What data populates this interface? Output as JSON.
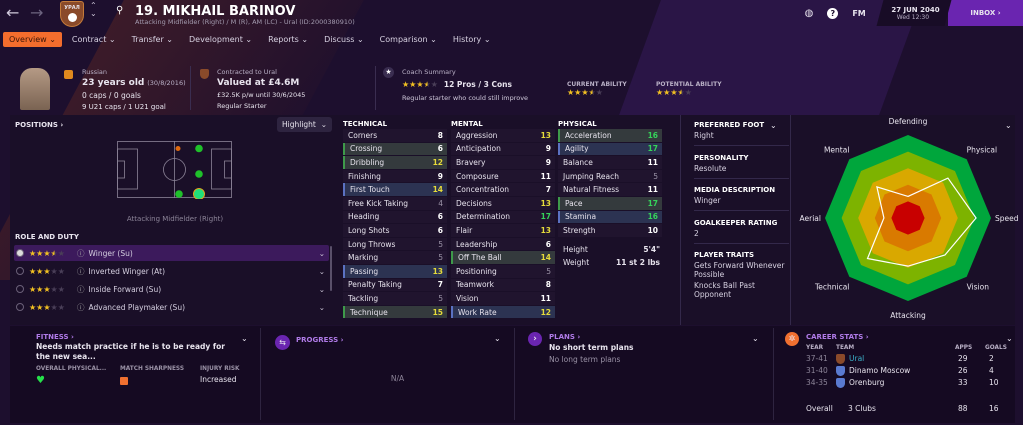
{
  "header": {
    "title": "19. MIKHAIL BARINOV",
    "subtitle": "Attacking Midfielder (Right) / M (R), AM (LC) - Ural (ID:2000380910)",
    "date": "27 JUN 2040",
    "time": "Wed 12:30",
    "fm": "FM",
    "inbox": "INBOX",
    "club_badge_text": "УРАЛ"
  },
  "tabs": [
    "Overview",
    "Contract",
    "Transfer",
    "Development",
    "Reports",
    "Discuss",
    "Comparison",
    "History"
  ],
  "profile": {
    "nationality": "Russian",
    "age": "23 years old",
    "dob": "(30/8/2016)",
    "caps": "0 caps / 0 goals",
    "u21": "9 U21 caps / 1 U21 goal"
  },
  "contract": {
    "label": "Contracted to Ural",
    "value": "Valued at £4.6M",
    "wage": "£32.5K p/w until 30/6/2045",
    "status": "Regular Starter"
  },
  "coach": {
    "label": "Coach Summary",
    "stars": 3.5,
    "pros_cons": "12 Pros / 3 Cons",
    "summary": "Regular starter who could still improve"
  },
  "ability": {
    "current_label": "CURRENT ABILITY",
    "current_stars": 3.5,
    "potential_label": "POTENTIAL ABILITY",
    "potential_stars": 3.5
  },
  "positions": {
    "title": "POSITIONS",
    "highlight": "Highlight",
    "caption": "Attacking Midfielder (Right)"
  },
  "roles": {
    "title": "ROLE AND DUTY",
    "items": [
      {
        "name": "Winger (Su)",
        "stars": 3.5,
        "selected": true
      },
      {
        "name": "Inverted Winger (At)",
        "stars": 3,
        "selected": false
      },
      {
        "name": "Inside Forward (Su)",
        "stars": 3,
        "selected": false
      },
      {
        "name": "Advanced Playmaker (Su)",
        "stars": 3,
        "selected": false
      }
    ]
  },
  "attributes": {
    "technical": {
      "title": "TECHNICAL",
      "items": [
        [
          "Corners",
          8,
          ""
        ],
        [
          "Crossing",
          6,
          "g"
        ],
        [
          "Dribbling",
          12,
          "g"
        ],
        [
          "Finishing",
          9,
          ""
        ],
        [
          "First Touch",
          14,
          "b"
        ],
        [
          "Free Kick Taking",
          4,
          ""
        ],
        [
          "Heading",
          6,
          ""
        ],
        [
          "Long Shots",
          6,
          ""
        ],
        [
          "Long Throws",
          5,
          ""
        ],
        [
          "Marking",
          5,
          ""
        ],
        [
          "Passing",
          13,
          "b"
        ],
        [
          "Penalty Taking",
          7,
          ""
        ],
        [
          "Tackling",
          5,
          ""
        ],
        [
          "Technique",
          15,
          "g"
        ]
      ]
    },
    "mental": {
      "title": "MENTAL",
      "items": [
        [
          "Aggression",
          13,
          ""
        ],
        [
          "Anticipation",
          9,
          ""
        ],
        [
          "Bravery",
          9,
          ""
        ],
        [
          "Composure",
          11,
          ""
        ],
        [
          "Concentration",
          7,
          ""
        ],
        [
          "Decisions",
          13,
          ""
        ],
        [
          "Determination",
          17,
          ""
        ],
        [
          "Flair",
          13,
          ""
        ],
        [
          "Leadership",
          6,
          ""
        ],
        [
          "Off The Ball",
          14,
          "g"
        ],
        [
          "Positioning",
          5,
          ""
        ],
        [
          "Teamwork",
          8,
          ""
        ],
        [
          "Vision",
          11,
          ""
        ],
        [
          "Work Rate",
          12,
          "b"
        ]
      ]
    },
    "physical": {
      "title": "PHYSICAL",
      "items": [
        [
          "Acceleration",
          16,
          "g"
        ],
        [
          "Agility",
          17,
          "b"
        ],
        [
          "Balance",
          11,
          ""
        ],
        [
          "Jumping Reach",
          5,
          ""
        ],
        [
          "Natural Fitness",
          11,
          ""
        ],
        [
          "Pace",
          17,
          "g"
        ],
        [
          "Stamina",
          16,
          "b"
        ],
        [
          "Strength",
          10,
          ""
        ]
      ]
    },
    "height_label": "Height",
    "height": "5'4\"",
    "weight_label": "Weight",
    "weight": "11 st 2 lbs"
  },
  "info": [
    {
      "h": "PREFERRED FOOT",
      "v": [
        "Right"
      ]
    },
    {
      "h": "PERSONALITY",
      "v": [
        "Resolute"
      ]
    },
    {
      "h": "MEDIA DESCRIPTION",
      "v": [
        "Winger"
      ]
    },
    {
      "h": "GOALKEEPER RATING",
      "v": [
        "2"
      ]
    },
    {
      "h": "PLAYER TRAITS",
      "v": [
        "Gets Forward Whenever Possible",
        "Knocks Ball Past Opponent"
      ]
    }
  ],
  "radar": {
    "labels": [
      "Defending",
      "Physical",
      "Speed",
      "Vision",
      "Attacking",
      "Technical",
      "Aerial",
      "Mental"
    ],
    "values": [
      0.26,
      0.68,
      0.82,
      0.63,
      0.58,
      0.69,
      0.29,
      0.53
    ],
    "band_colors": [
      "#00a63c",
      "#7db300",
      "#d9a800",
      "#d97a00",
      "#c80000"
    ]
  },
  "fitness": {
    "title": "FITNESS",
    "text": "Needs match practice if he is to be ready for the new sea...",
    "cols": [
      "OVERALL PHYSICAL...",
      "MATCH SHARPNESS",
      "INJURY RISK"
    ],
    "injury": "Increased"
  },
  "progress": {
    "title": "PROGRESS",
    "value": "N/A"
  },
  "plans": {
    "title": "PLANS",
    "short": "No short term plans",
    "long": "No long term plans"
  },
  "career": {
    "title": "CAREER STATS",
    "cols": [
      "YEAR",
      "TEAM",
      "APPS",
      "GOALS"
    ],
    "rows": [
      [
        "37-41",
        "Ural",
        "29",
        "2"
      ],
      [
        "31-40",
        "Dinamo Moscow",
        "26",
        "4"
      ],
      [
        "34-35",
        "Orenburg",
        "33",
        "10"
      ]
    ],
    "overall": "Overall",
    "clubs": "3 Clubs",
    "total_apps": "88",
    "total_goals": "16"
  }
}
